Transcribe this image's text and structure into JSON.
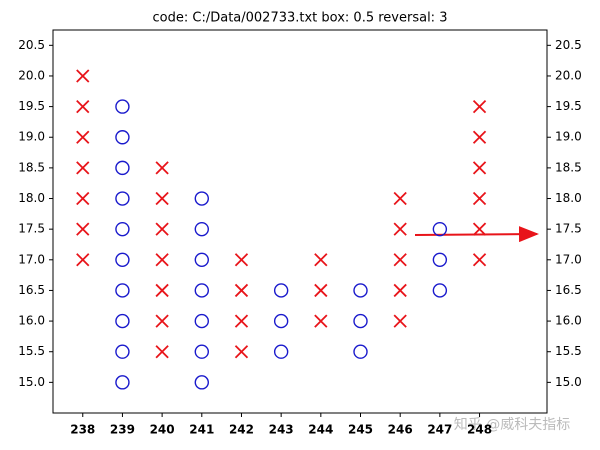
{
  "chart_data": {
    "type": "scatter",
    "title": "code: C:/Data/002733.txt box: 0.5 reversal: 3",
    "xlim": [
      237.25,
      249.7
    ],
    "xticks": [
      238,
      239,
      240,
      241,
      242,
      243,
      244,
      245,
      246,
      247,
      248
    ],
    "ylim": [
      14.5,
      20.75
    ],
    "yticks": [
      {
        "value": 15,
        "label": "15.0"
      },
      15.5,
      {
        "value": 16,
        "label": "16.0"
      },
      16.5,
      {
        "value": 17,
        "label": "17.0"
      },
      17.5,
      {
        "value": 18,
        "label": "18.0"
      },
      18.5,
      {
        "value": 19,
        "label": "19.0"
      },
      19.5,
      {
        "value": 20,
        "label": "20.0"
      },
      20.5
    ],
    "mirror_y_ticks": true,
    "series": [
      {
        "marker": "x",
        "color": "#e8141a",
        "x": [
          238,
          238,
          238,
          238,
          238,
          238,
          238,
          240,
          240,
          240,
          240,
          240,
          240,
          240,
          242,
          242,
          242,
          242,
          244,
          244,
          244,
          246,
          246,
          246,
          246,
          246,
          248,
          248,
          248,
          248,
          248,
          248
        ],
        "values": [
          17,
          17.5,
          18,
          18.5,
          19,
          19.5,
          20,
          15.5,
          16,
          16.5,
          17,
          17.5,
          18,
          18.5,
          15.5,
          16,
          16.5,
          17,
          16,
          16.5,
          17,
          16,
          16.5,
          17,
          17.5,
          18,
          17,
          17.5,
          18,
          18.5,
          19,
          19.5
        ]
      },
      {
        "marker": "o",
        "color": "#1a1acc",
        "x": [
          239,
          239,
          239,
          239,
          239,
          239,
          239,
          239,
          239,
          239,
          241,
          241,
          241,
          241,
          241,
          241,
          241,
          243,
          243,
          243,
          245,
          245,
          245,
          247,
          247,
          247
        ],
        "values": [
          15,
          15.5,
          16,
          16.5,
          17,
          17.5,
          18,
          18.5,
          19,
          19.5,
          15,
          15.5,
          16,
          16.5,
          17,
          17.5,
          18,
          15.5,
          16,
          16.5,
          15.5,
          16,
          16.5,
          16.5,
          17,
          17.5
        ]
      }
    ],
    "watermark": "知乎 @威科夫指标"
  }
}
